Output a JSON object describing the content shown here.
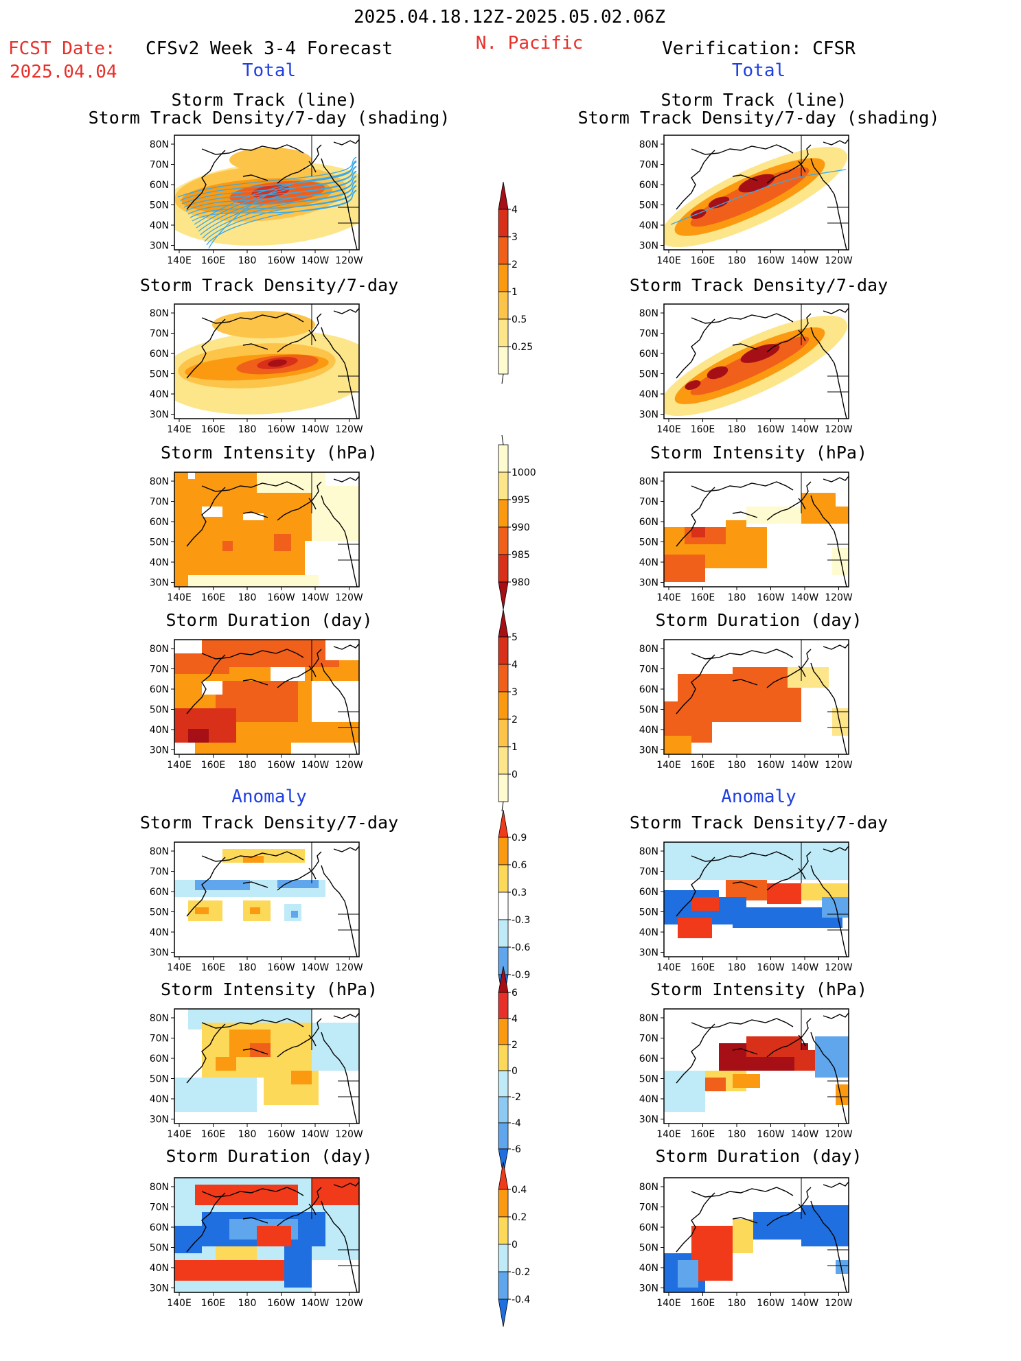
{
  "header": {
    "period": "2025.04.18.12Z-2025.05.02.06Z",
    "fcst_label": "FCST Date:",
    "fcst_date": "2025.04.04",
    "forecast_title": "CFSv2 Week 3-4 Forecast",
    "region": "N. Pacific",
    "verification_title": "Verification: CFSR",
    "total_left": "Total",
    "total_right": "Total",
    "anomaly_left": "Anomaly",
    "anomaly_right": "Anomaly"
  },
  "colors": {
    "title_red": "#e8302a",
    "title_blue": "#1f3fe0",
    "track_line": "#3aa8e8",
    "map_lines": "#000000"
  },
  "axes": {
    "lon_ticks": [
      "140E",
      "160E",
      "180",
      "160W",
      "140W",
      "120W"
    ],
    "lat_ticks": [
      "80N",
      "70N",
      "60N",
      "50N",
      "40N",
      "30N"
    ]
  },
  "panels": {
    "l1": {
      "line1": "Storm Track (line)",
      "line2": "Storm Track Density/7-day (shading)"
    },
    "r1": {
      "line1": "Storm Track (line)",
      "line2": "Storm Track Density/7-day (shading)"
    },
    "l2": {
      "line1": "Storm Track Density/7-day"
    },
    "r2": {
      "line1": "Storm Track Density/7-day"
    },
    "l3": {
      "line1": "Storm Intensity (hPa)"
    },
    "r3": {
      "line1": "Storm Intensity (hPa)"
    },
    "l4": {
      "line1": "Storm Duration (day)"
    },
    "r4": {
      "line1": "Storm Duration (day)"
    },
    "l5": {
      "line1": "Storm Track Density/7-day"
    },
    "r5": {
      "line1": "Storm Track Density/7-day"
    },
    "l6": {
      "line1": "Storm Intensity (hPa)"
    },
    "r6": {
      "line1": "Storm Intensity (hPa)"
    },
    "l7": {
      "line1": "Storm Duration (day)"
    },
    "r7": {
      "line1": "Storm Duration (day)"
    }
  },
  "colorbars": {
    "density_total": {
      "labels": [
        "4",
        "3",
        "2",
        "1",
        "0.5",
        "0.25"
      ],
      "colors": [
        "#a50f15",
        "#d9301a",
        "#f0601a",
        "#fb9a10",
        "#fdc44a",
        "#fde58a",
        "#fffbd0"
      ]
    },
    "intensity_total": {
      "labels": [
        "1000",
        "995",
        "990",
        "985",
        "980"
      ],
      "colors": [
        "#fffbd0",
        "#fde58a",
        "#fb9a10",
        "#f0601a",
        "#d9301a",
        "#a50f15"
      ]
    },
    "duration_total": {
      "labels": [
        "5",
        "4",
        "3",
        "2",
        "1",
        "0"
      ],
      "colors": [
        "#a50f15",
        "#d9301a",
        "#f0601a",
        "#fb9a10",
        "#fdc44a",
        "#fde58a",
        "#fffbd0"
      ]
    },
    "density_anom": {
      "labels": [
        "0.9",
        "0.6",
        "0.3",
        "-0.3",
        "-0.6",
        "-0.9"
      ],
      "colors": [
        "#f03a1a",
        "#fb9a10",
        "#fdd95a",
        "#ffffff",
        "#bfeaf8",
        "#5fa6ec",
        "#1f6fe0"
      ]
    },
    "intensity_anom": {
      "labels": [
        "6",
        "4",
        "2",
        "0",
        "-2",
        "-4",
        "-6"
      ],
      "colors": [
        "#a50f15",
        "#e8302a",
        "#fb9a10",
        "#fdd95a",
        "#bfeaf8",
        "#8ccaf4",
        "#5fa6ec",
        "#1f6fe0"
      ]
    },
    "duration_anom": {
      "labels": [
        "0.4",
        "0.2",
        "0",
        "-0.2",
        "-0.4"
      ],
      "colors": [
        "#f03a1a",
        "#fb9a10",
        "#fdd95a",
        "#bfeaf8",
        "#5fa6ec",
        "#1f6fe0"
      ]
    }
  }
}
